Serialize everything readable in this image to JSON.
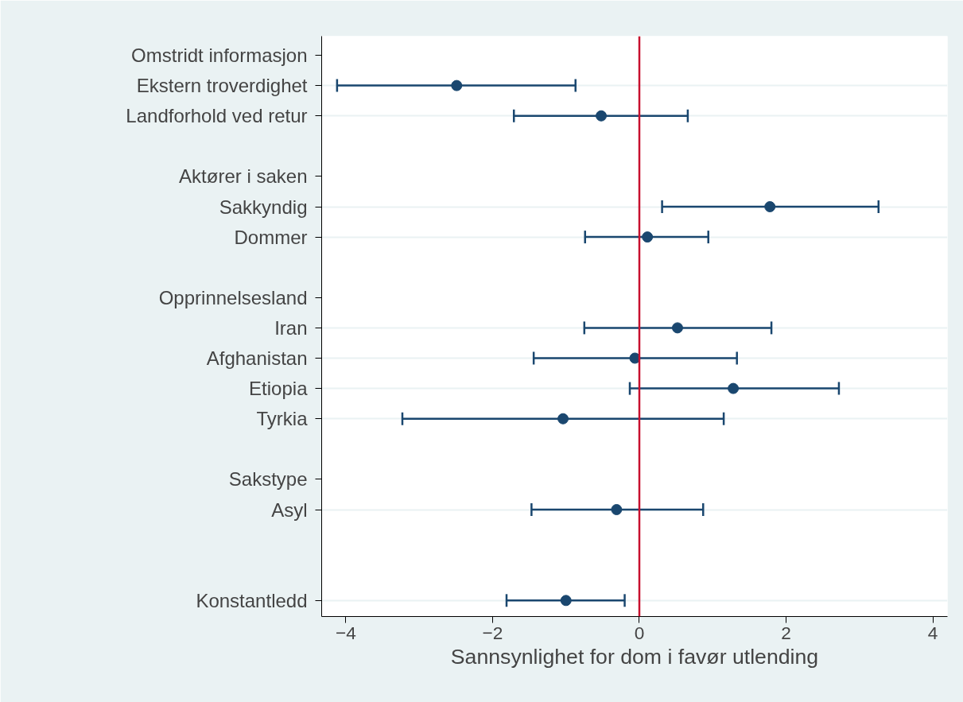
{
  "chart_data": {
    "type": "scatter",
    "orientation": "horizontal",
    "xlabel": "Sannsynlighet for dom i favør utlending",
    "categories": [
      "Omstridt informasjon",
      "Ekstern troverdighet",
      "Landforhold ved retur",
      null,
      "Aktører i saken",
      "Sakkyndig",
      "Dommer",
      null,
      "Opprinnelsesland",
      "Iran",
      "Afghanistan",
      "Etiopia",
      "Tyrkia",
      null,
      "Sakstype",
      "Asyl",
      null,
      null,
      "Konstantledd"
    ],
    "values": [
      null,
      -2.49,
      -0.52,
      null,
      null,
      1.78,
      0.11,
      null,
      null,
      0.52,
      -0.06,
      1.28,
      -1.04,
      null,
      null,
      -0.31,
      null,
      null,
      -1.0
    ],
    "errors": [
      null,
      [
        -4.12,
        -0.87
      ],
      [
        -1.71,
        0.66
      ],
      null,
      null,
      [
        0.31,
        3.26
      ],
      [
        -0.74,
        0.94
      ],
      null,
      null,
      [
        -0.75,
        1.8
      ],
      [
        -1.44,
        1.33
      ],
      [
        -0.13,
        2.72
      ],
      [
        -3.23,
        1.15
      ],
      null,
      null,
      [
        -1.47,
        0.87
      ],
      null,
      null,
      [
        -1.81,
        -0.2
      ]
    ],
    "color": "#1a476f",
    "marker": "circle",
    "grid": "y",
    "xlim": [
      -4.33,
      4.2
    ],
    "xticks": [
      -4,
      -2,
      0,
      2,
      4
    ],
    "ref_lines": [
      {
        "axis": "x",
        "value": 0,
        "label": null,
        "color": "#c8102e"
      }
    ]
  }
}
